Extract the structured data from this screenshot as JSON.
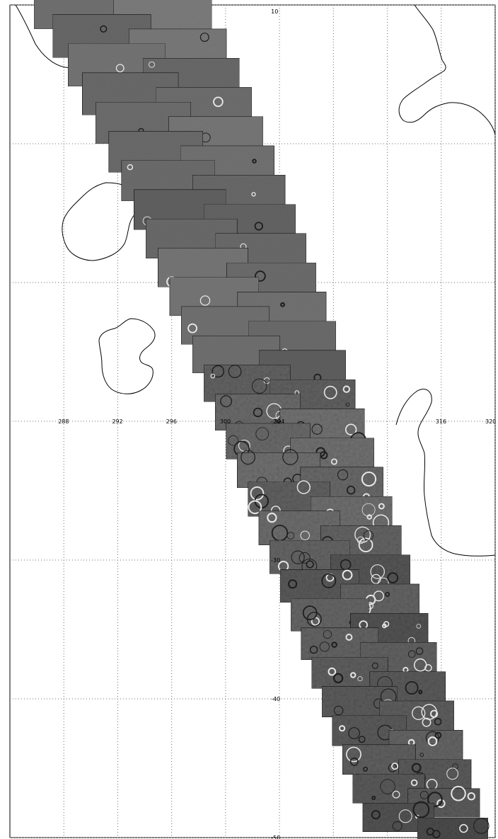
{
  "map": {
    "projection": "lon/lat grid mosaic",
    "lon_labels": [
      "288",
      "292",
      "296",
      "300",
      "304",
      "316",
      "320"
    ],
    "lon_values": [
      288,
      292,
      296,
      300,
      304,
      308,
      312,
      316,
      320
    ],
    "lat_labels": [
      "10",
      "-20",
      "-30",
      "-40",
      "-50"
    ],
    "lat_values": [
      10,
      0,
      -10,
      -20,
      -30,
      -40,
      -50
    ],
    "lon_range": [
      284,
      320
    ],
    "lat_range": [
      10,
      -50
    ],
    "grid": "dotted",
    "colors": {
      "background": "#ffffff",
      "grid": "#6e6e6e",
      "coastline": "#000000",
      "imagery_light": "#9a9a9a",
      "imagery_dark": "#4a4a4a"
    },
    "strip": {
      "description_hidden": true,
      "frame_count": 58
    }
  }
}
